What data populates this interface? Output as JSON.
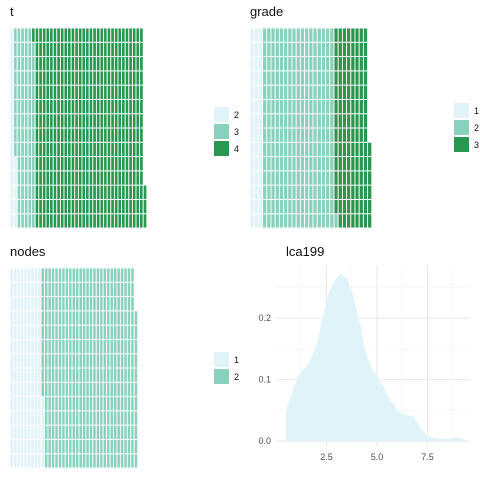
{
  "palette": {
    "c1": "#e0f3f8",
    "c2": "#88d1bc",
    "c3": "#2a9650"
  },
  "charts": [
    {
      "type": "waffle",
      "title": "t",
      "legend": [
        {
          "label": "2",
          "color": "#e0f3f8"
        },
        {
          "label": "3",
          "color": "#88d1bc"
        },
        {
          "label": "4",
          "color": "#2a9650"
        }
      ],
      "counts": [
        19,
        78,
        424
      ],
      "rows": 14
    },
    {
      "type": "waffle",
      "title": "grade",
      "legend": [
        {
          "label": "1",
          "color": "#e0f3f8"
        },
        {
          "label": "2",
          "color": "#88d1bc"
        },
        {
          "label": "3",
          "color": "#2a9650"
        }
      ],
      "counts": [
        42,
        239,
        117
      ],
      "rows": 14
    },
    {
      "type": "waffle",
      "title": "nodes",
      "legend": [
        {
          "label": "1",
          "color": "#e0f3f8"
        },
        {
          "label": "2",
          "color": "#88d1bc"
        }
      ],
      "counts": [
        131,
        384
      ],
      "rows": 14
    }
  ],
  "chart_data": {
    "type": "area",
    "title": "lca199",
    "x": [
      0.5,
      0.7,
      1.0,
      1.3,
      1.6,
      2.0,
      2.3,
      2.6,
      2.9,
      3.2,
      3.5,
      3.8,
      4.1,
      4.4,
      4.7,
      5.0,
      5.3,
      5.6,
      5.9,
      6.2,
      6.5,
      6.8,
      7.1,
      7.4,
      7.7,
      8.0,
      8.5,
      9.0,
      9.3
    ],
    "values": [
      0.05,
      0.07,
      0.1,
      0.115,
      0.125,
      0.155,
      0.2,
      0.24,
      0.262,
      0.272,
      0.265,
      0.24,
      0.2,
      0.15,
      0.12,
      0.105,
      0.09,
      0.07,
      0.055,
      0.045,
      0.042,
      0.04,
      0.025,
      0.012,
      0.006,
      0.004,
      0.004,
      0.006,
      0.003
    ],
    "xticks": [
      "2.5",
      "5.0",
      "7.5"
    ],
    "xtick_values": [
      2.5,
      5.0,
      7.5
    ],
    "yticks": [
      "0.0",
      "0.1",
      "0.2"
    ],
    "ytick_values": [
      0.0,
      0.1,
      0.2
    ],
    "xlim": [
      0.0,
      9.6
    ],
    "ylim": [
      -0.008,
      0.285
    ],
    "fill": "#e0f3f8",
    "grid": true
  }
}
